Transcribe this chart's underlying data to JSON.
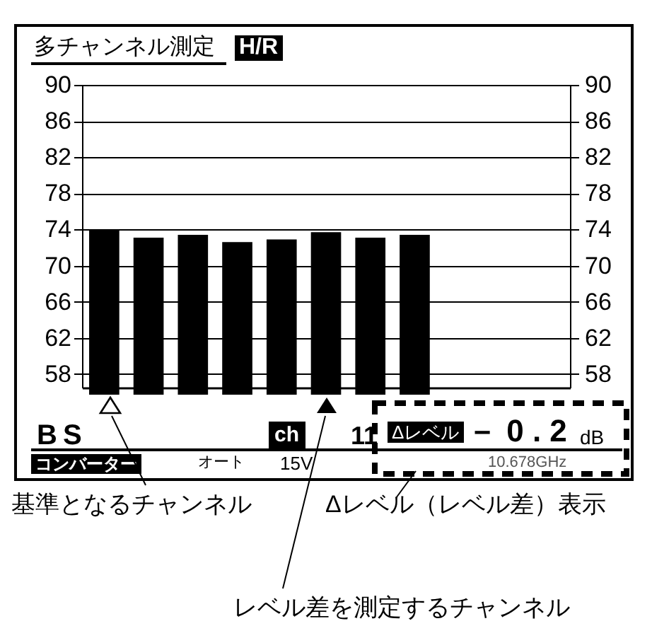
{
  "chart_data": {
    "type": "bar",
    "title": "多チャンネル測定",
    "categories": [
      null,
      null,
      null,
      null,
      null,
      null,
      null,
      null,
      null,
      null,
      null
    ],
    "values": [
      74.0,
      73.1,
      73.4,
      72.6,
      72.9,
      73.7,
      73.1,
      73.4,
      null,
      null,
      null
    ],
    "color": "#000000",
    "ylim": [
      56.5,
      90
    ],
    "yticks": [
      58,
      62,
      66,
      70,
      74,
      78,
      82,
      86,
      90
    ],
    "y2lim": [
      56.5,
      90
    ],
    "y2ticks": [
      58,
      62,
      66,
      70,
      74,
      78,
      82,
      86,
      90
    ],
    "grid": true,
    "tick_labels": "y",
    "annotations": [
      "H/R",
      "BS",
      "ch",
      "11",
      "Δレベル",
      "－ 0 . 2",
      "dB",
      "コンバーター",
      "オート",
      "15V",
      "10.678GHz",
      "基準となるチャンネル",
      "Δレベル（レベル差）表示",
      "レベル差を測定するチャンネル"
    ]
  }
}
